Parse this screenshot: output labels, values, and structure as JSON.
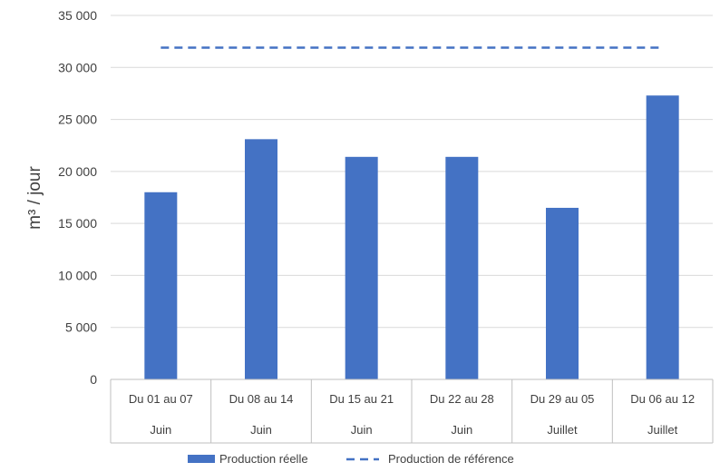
{
  "chart_data": {
    "type": "bar",
    "ylabel": "m³ / jour",
    "ylim": [
      0,
      35000
    ],
    "yticks": [
      0,
      5000,
      10000,
      15000,
      20000,
      25000,
      30000,
      35000
    ],
    "ytick_labels": [
      "0",
      "5 000",
      "10 000",
      "15 000",
      "20 000",
      "25 000",
      "30 000",
      "35 000"
    ],
    "categories": [
      {
        "period": "Du 01 au 07",
        "month": "Juin"
      },
      {
        "period": "Du 08 au 14",
        "month": "Juin"
      },
      {
        "period": "Du 15 au 21",
        "month": "Juin"
      },
      {
        "period": "Du 22 au 28",
        "month": "Juin"
      },
      {
        "period": "Du 29 au 05",
        "month": "Juillet"
      },
      {
        "period": "Du 06 au 12",
        "month": "Juillet"
      }
    ],
    "series": [
      {
        "name": "Production réelle",
        "kind": "bar",
        "color": "#4472C4",
        "values": [
          18000,
          23100,
          21400,
          21400,
          16500,
          27300
        ]
      },
      {
        "name": "Production de référence",
        "kind": "dashed-line",
        "color": "#4472C4",
        "values": [
          31900,
          31900,
          31900,
          31900,
          31900,
          31900
        ]
      }
    ],
    "grid": "horizontal",
    "legend": "bottom"
  }
}
